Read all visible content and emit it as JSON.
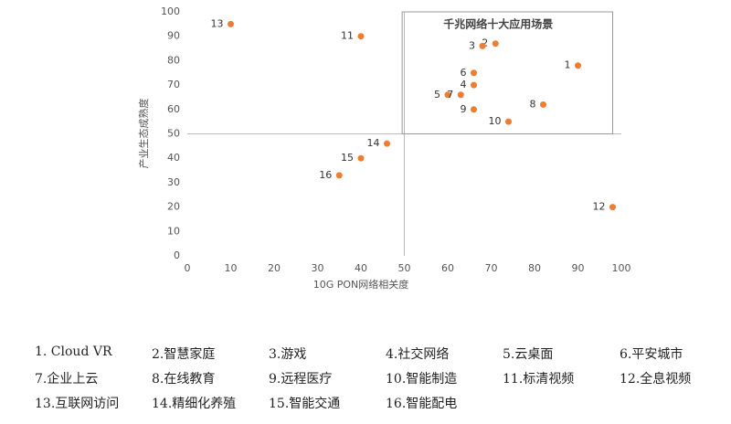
{
  "chart_data": {
    "type": "scatter",
    "xlabel": "10G PON网络相关度",
    "ylabel": "产业生态成熟度",
    "point_labels": [
      "1",
      "2",
      "3",
      "4",
      "5",
      "6",
      "7",
      "8",
      "9",
      "10",
      "11",
      "12",
      "13",
      "14",
      "15",
      "16"
    ],
    "x": [
      90,
      71,
      68,
      66,
      60,
      66,
      63,
      82,
      66,
      74,
      40,
      98,
      10,
      46,
      40,
      35
    ],
    "values": [
      78,
      87,
      86,
      70,
      66,
      75,
      66,
      62,
      60,
      55,
      90,
      20,
      95,
      46,
      40,
      33
    ],
    "color": "#ed7d31",
    "xlim": [
      0,
      100
    ],
    "ylim": [
      0,
      100
    ],
    "xticks": [
      0,
      10,
      20,
      30,
      40,
      50,
      60,
      70,
      80,
      90,
      100
    ],
    "yticks": [
      0,
      10,
      20,
      30,
      40,
      50,
      60,
      70,
      80,
      90,
      100
    ],
    "dividers": {
      "x": 50,
      "y": 50
    },
    "highlight": {
      "title": "千兆网络十大应用场景",
      "xlim": [
        49.5,
        98
      ],
      "ylim": [
        50,
        100
      ]
    }
  },
  "legend_items": [
    "1. Cloud VR",
    "2.智慧家庭",
    "3.游戏",
    "4.社交网络",
    "5.云桌面",
    "6.平安城市",
    "7.企业上云",
    "8.在线教育",
    "9.远程医疗",
    "10.智能制造",
    "11.标清视频",
    "12.全息视频",
    "13.互联网访问",
    "14.精细化养殖",
    "15.智能交通",
    "16.智能配电"
  ]
}
